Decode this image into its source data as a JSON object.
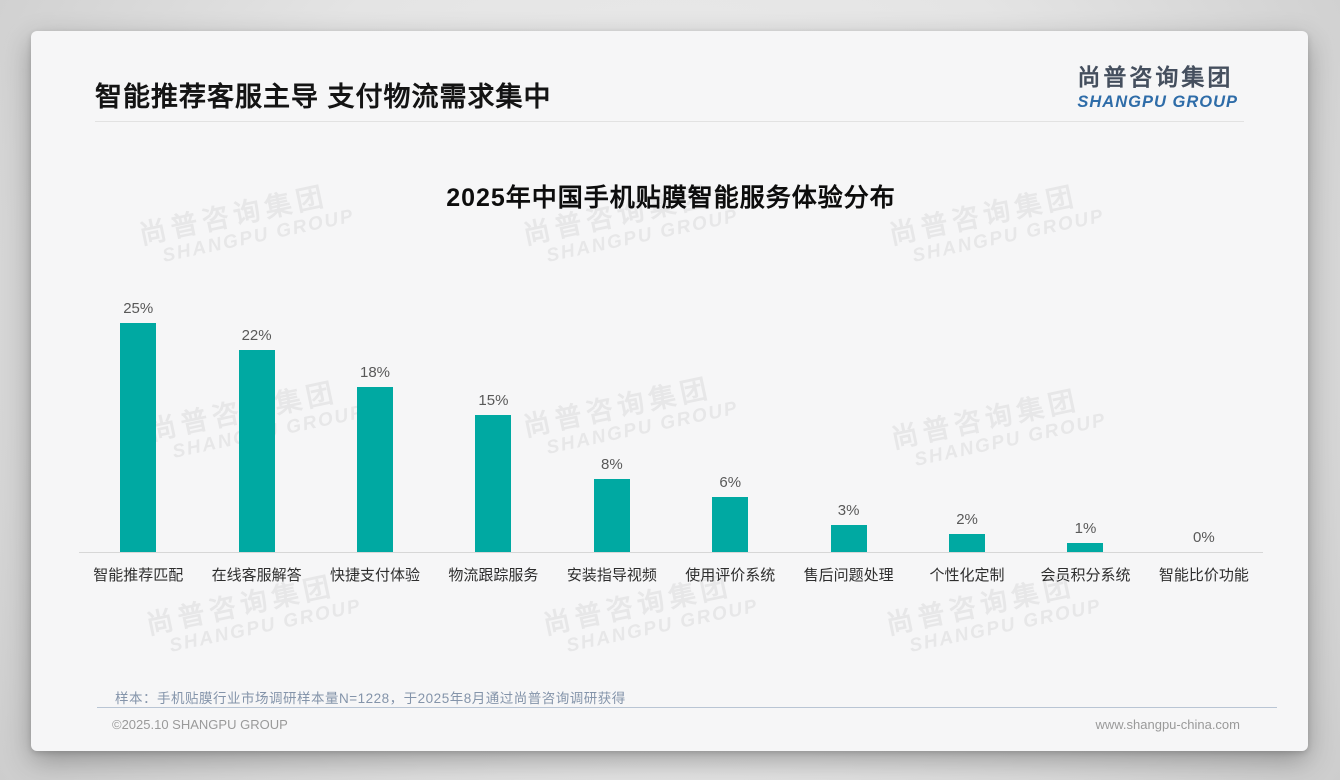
{
  "header": {
    "title": "智能推荐客服主导 支付物流需求集中",
    "logo": {
      "cn": "尚普咨询集团",
      "en": "SHANGPU GROUP"
    }
  },
  "chart_data": {
    "type": "bar",
    "title": "2025年中国手机贴膜智能服务体验分布",
    "categories": [
      "智能推荐匹配",
      "在线客服解答",
      "快捷支付体验",
      "物流跟踪服务",
      "安装指导视频",
      "使用评价系统",
      "售后问题处理",
      "个性化定制",
      "会员积分系统",
      "智能比价功能"
    ],
    "values": [
      25,
      22,
      18,
      15,
      8,
      6,
      3,
      2,
      1,
      0
    ],
    "value_labels": [
      "25%",
      "22%",
      "18%",
      "15%",
      "8%",
      "6%",
      "3%",
      "2%",
      "1%",
      "0%"
    ],
    "xlabel": "",
    "ylabel": "",
    "ylim": [
      0,
      25
    ],
    "grid": false,
    "legend": "none",
    "bar_color": "#00A9A2"
  },
  "note": {
    "text": "样本：手机贴膜行业市场调研样本量N=1228，于2025年8月通过尚普咨询调研获得"
  },
  "footer": {
    "left": "©2025.10 SHANGPU GROUP",
    "right": "www.shangpu-china.com"
  },
  "watermark": {
    "cn": "尚普咨询集团",
    "en": "SHANGPU GROUP"
  },
  "colors": {
    "accent_teal": "#00A9A2",
    "logo_cn": "#454f5e",
    "logo_en": "#2e6ca8",
    "note_text": "#8494aa",
    "note_divider": "#b9c5d4",
    "footer_text": "#9a9a9a",
    "card_bg": "#f6f6f7"
  }
}
